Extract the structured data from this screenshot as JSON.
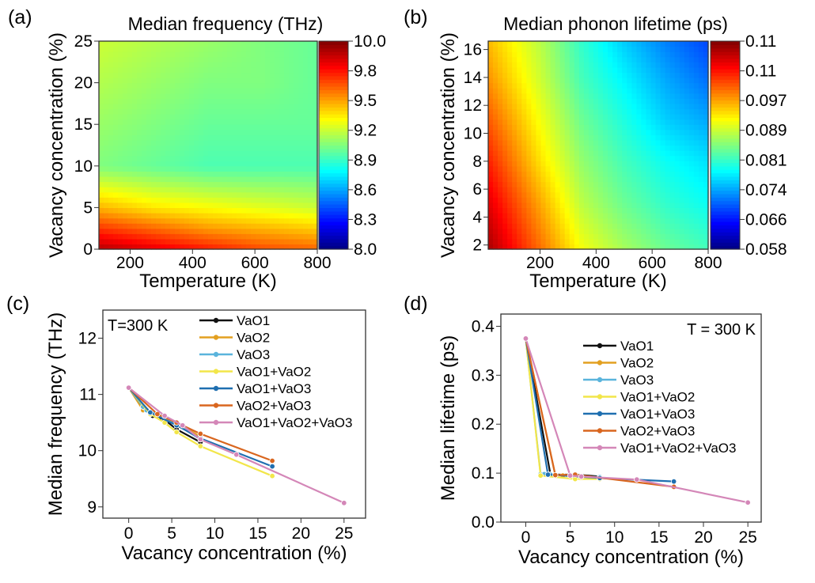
{
  "chart_data": [
    {
      "panel": "(a)",
      "type": "heatmap",
      "title": "Median frequency (THz)",
      "xlabel": "Temperature (K)",
      "ylabel": "Vacancy concentration (%)",
      "xlim": [
        100,
        800
      ],
      "ylim": [
        0,
        25
      ],
      "xticks": [
        200,
        400,
        600,
        800
      ],
      "yticks": [
        0,
        5,
        10,
        15,
        20,
        25
      ],
      "colormap": "jet",
      "colorbar_range": [
        8.0,
        10.0
      ],
      "colorbar_ticks": [
        "10.0",
        "9.8",
        "9.5",
        "9.2",
        "8.9",
        "8.6",
        "8.3",
        "8.0"
      ],
      "x": [
        100,
        275,
        450,
        625,
        800
      ],
      "y": [
        0,
        2.5,
        5,
        10,
        15,
        20,
        25
      ],
      "z": [
        [
          9.9,
          9.8,
          9.7,
          9.6,
          9.55
        ],
        [
          9.65,
          9.55,
          9.45,
          9.4,
          9.35
        ],
        [
          9.4,
          9.3,
          9.25,
          9.2,
          9.15
        ],
        [
          9.0,
          8.95,
          8.9,
          8.9,
          8.9
        ],
        [
          9.05,
          9.0,
          8.95,
          8.95,
          8.95
        ],
        [
          9.1,
          9.05,
          9.0,
          9.0,
          8.95
        ],
        [
          9.15,
          9.1,
          9.05,
          9.0,
          8.95
        ]
      ]
    },
    {
      "panel": "(b)",
      "type": "heatmap",
      "title": "Median phonon lifetime (ps)",
      "xlabel": "Temperature (K)",
      "ylabel": "Vacancy concentration (%)",
      "xlim": [
        15,
        800
      ],
      "ylim": [
        1.7,
        16.6
      ],
      "xticks": [
        200,
        400,
        600,
        800
      ],
      "yticks": [
        2,
        4,
        6,
        8,
        10,
        12,
        14,
        16
      ],
      "colormap": "jet",
      "colorbar_range": [
        0.058,
        0.11
      ],
      "colorbar_ticks": [
        "0.11",
        "0.11",
        "0.097",
        "0.089",
        "0.081",
        "0.074",
        "0.066",
        "0.058"
      ],
      "x": [
        15,
        200,
        350,
        500,
        650,
        800
      ],
      "y": [
        1.7,
        5,
        8,
        11,
        14,
        16.6
      ],
      "z": [
        [
          0.108,
          0.098,
          0.09,
          0.086,
          0.083,
          0.081
        ],
        [
          0.105,
          0.095,
          0.087,
          0.083,
          0.08,
          0.078
        ],
        [
          0.102,
          0.092,
          0.085,
          0.081,
          0.078,
          0.076
        ],
        [
          0.099,
          0.09,
          0.083,
          0.079,
          0.075,
          0.073
        ],
        [
          0.096,
          0.088,
          0.081,
          0.077,
          0.073,
          0.07
        ],
        [
          0.094,
          0.087,
          0.08,
          0.075,
          0.071,
          0.068
        ]
      ]
    },
    {
      "panel": "(c)",
      "type": "line",
      "annotation": "T=300 K",
      "xlabel": "Vacancy concentration (%)",
      "ylabel": "Median frequency (THz)",
      "xlim": [
        -3,
        27.5
      ],
      "ylim": [
        8.8,
        12.5
      ],
      "xticks": [
        0,
        5,
        10,
        15,
        20,
        25
      ],
      "yticks": [
        9,
        10,
        11,
        12
      ],
      "legend": "top-right",
      "series": [
        {
          "name": "VaO1",
          "color": "#111111",
          "points": [
            [
              0,
              11.12
            ],
            [
              2.78,
              10.62
            ],
            [
              4.17,
              10.55
            ],
            [
              5.56,
              10.38
            ],
            [
              8.33,
              10.15
            ]
          ]
        },
        {
          "name": "VaO2",
          "color": "#e3a020",
          "points": [
            [
              0,
              11.12
            ],
            [
              1.67,
              10.72
            ],
            [
              3.33,
              10.62
            ],
            [
              5.56,
              10.5
            ],
            [
              8.33,
              10.25
            ]
          ]
        },
        {
          "name": "VaO3",
          "color": "#5ab4dc",
          "points": [
            [
              0,
              11.12
            ],
            [
              1.67,
              10.78
            ],
            [
              2.08,
              10.72
            ],
            [
              4.17,
              10.6
            ],
            [
              8.33,
              10.2
            ]
          ]
        },
        {
          "name": "VaO1+VaO2",
          "color": "#f2e64a",
          "points": [
            [
              0,
              11.12
            ],
            [
              2.5,
              10.65
            ],
            [
              4.17,
              10.5
            ],
            [
              5.56,
              10.33
            ],
            [
              8.33,
              10.08
            ],
            [
              16.67,
              9.55
            ]
          ]
        },
        {
          "name": "VaO1+VaO3",
          "color": "#1f6fb0",
          "points": [
            [
              0,
              11.12
            ],
            [
              2.5,
              10.68
            ],
            [
              5.56,
              10.45
            ],
            [
              8.33,
              10.22
            ],
            [
              16.67,
              9.72
            ]
          ]
        },
        {
          "name": "VaO2+VaO3",
          "color": "#d9661f",
          "points": [
            [
              0,
              11.12
            ],
            [
              3.33,
              10.65
            ],
            [
              5.56,
              10.5
            ],
            [
              8.33,
              10.3
            ],
            [
              16.67,
              9.82
            ]
          ]
        },
        {
          "name": "VaO1+VaO2+VaO3",
          "color": "#d487b8",
          "points": [
            [
              0,
              11.12
            ],
            [
              4.17,
              10.62
            ],
            [
              6.25,
              10.45
            ],
            [
              8.33,
              10.2
            ],
            [
              12.5,
              9.93
            ],
            [
              25,
              9.07
            ]
          ]
        }
      ]
    },
    {
      "panel": "(d)",
      "type": "line",
      "annotation": "T = 300 K",
      "xlabel": "Vacancy concentration (%)",
      "ylabel": "Median lifetime (ps)",
      "xlim": [
        -2.8,
        26.5
      ],
      "ylim": [
        0,
        0.425
      ],
      "xticks": [
        0,
        5,
        10,
        15,
        20,
        25
      ],
      "yticks": [
        0.0,
        0.1,
        0.2,
        0.3,
        0.4
      ],
      "legend": "top-right",
      "series": [
        {
          "name": "VaO1",
          "color": "#111111",
          "points": [
            [
              0,
              0.375
            ],
            [
              2.78,
              0.097
            ],
            [
              5.56,
              0.097
            ],
            [
              8.33,
              0.093
            ]
          ]
        },
        {
          "name": "VaO2",
          "color": "#e3a020",
          "points": [
            [
              0,
              0.375
            ],
            [
              3.33,
              0.096
            ],
            [
              4.17,
              0.095
            ],
            [
              8.33,
              0.09
            ]
          ]
        },
        {
          "name": "VaO3",
          "color": "#5ab4dc",
          "points": [
            [
              0,
              0.375
            ],
            [
              1.67,
              0.098
            ],
            [
              2.08,
              0.098
            ],
            [
              2.78,
              0.097
            ],
            [
              8.33,
              0.092
            ]
          ]
        },
        {
          "name": "VaO1+VaO2",
          "color": "#f2e64a",
          "points": [
            [
              0,
              0.375
            ],
            [
              1.67,
              0.095
            ],
            [
              5.56,
              0.088
            ],
            [
              8.33,
              0.088
            ]
          ]
        },
        {
          "name": "VaO1+VaO3",
          "color": "#1f6fb0",
          "points": [
            [
              0,
              0.375
            ],
            [
              2.5,
              0.097
            ],
            [
              8.33,
              0.09
            ],
            [
              16.67,
              0.083
            ]
          ]
        },
        {
          "name": "VaO2+VaO3",
          "color": "#d9661f",
          "points": [
            [
              0,
              0.375
            ],
            [
              3.33,
              0.096
            ],
            [
              5.56,
              0.097
            ],
            [
              16.67,
              0.072
            ]
          ]
        },
        {
          "name": "VaO1+VaO2+VaO3",
          "color": "#d487b8",
          "points": [
            [
              0,
              0.375
            ],
            [
              5,
              0.095
            ],
            [
              6.25,
              0.093
            ],
            [
              12.5,
              0.087
            ],
            [
              25,
              0.04
            ]
          ]
        }
      ]
    }
  ]
}
